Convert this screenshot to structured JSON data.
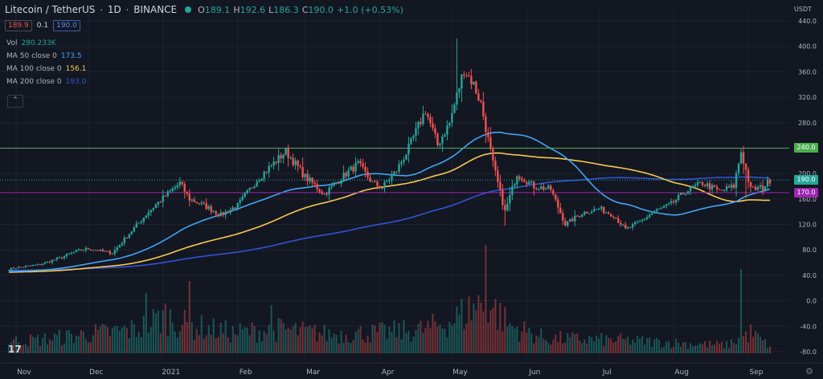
{
  "header": {
    "symbol": "Litecoin / TetherUS",
    "interval": "1D",
    "exchange": "BINANCE",
    "o_label": "O",
    "o_value": "189.1",
    "h_label": "H",
    "h_value": "192.6",
    "l_label": "L",
    "l_value": "186.3",
    "c_label": "C",
    "c_value": "190.0",
    "change": "+1.0 (+0.53%)"
  },
  "price_boxes": {
    "sell": "189.9",
    "spread": "0.1",
    "buy": "190.0"
  },
  "indicators": [
    {
      "label": "Vol",
      "value": "280.233K",
      "color": "#26a69a"
    },
    {
      "label": "MA 50 close 0",
      "value": "173.5",
      "color": "#42a5f5"
    },
    {
      "label": "MA 100 close 0",
      "value": "156.1",
      "color": "#f9c74f"
    },
    {
      "label": "MA 200 close 0",
      "value": "193.0",
      "color": "#2f55d4"
    }
  ],
  "collapse_icon": "chevron-up-icon",
  "colors": {
    "up": "#26a69a",
    "down": "#ef5350",
    "ma50": "#42a5f5",
    "ma100": "#f9c74f",
    "ma200": "#2f55d4",
    "hline_green": "#4caf50",
    "hline_purple": "#9c27b0",
    "last_price": "#26a69a"
  },
  "chart_data": {
    "type": "candlestick",
    "y_unit": "USDT",
    "y_ticks": [
      "440.0",
      "400.0",
      "360.0",
      "320.0",
      "280.0",
      "240.0",
      "200.0",
      "160.0",
      "120.0",
      "80.0",
      "40.0",
      "0.0",
      "-40.0",
      "-80.0"
    ],
    "y_tick_values": [
      440,
      400,
      360,
      320,
      280,
      240,
      200,
      160,
      120,
      80,
      40,
      0,
      -40,
      -80
    ],
    "ylim": [
      -95,
      470
    ],
    "x_labels": [
      "Nov",
      "Dec",
      "2021",
      "Feb",
      "Mar",
      "Apr",
      "May",
      "Jun",
      "Jul",
      "Aug",
      "Sep"
    ],
    "x_label_days": [
      0,
      30,
      61,
      92,
      120,
      151,
      181,
      212,
      242,
      273,
      304
    ],
    "x_range_days": [
      -5,
      317
    ],
    "horizontal_lines": [
      {
        "price": 240.0,
        "label": "240.0",
        "color": "#4caf50"
      },
      {
        "price": 170.0,
        "label": "170.0",
        "color": "#9c27b0"
      }
    ],
    "last_price": {
      "price": 190.0,
      "label": "190.0"
    },
    "close_anchors": [
      [
        -3,
        50
      ],
      [
        0,
        52
      ],
      [
        10,
        57
      ],
      [
        20,
        70
      ],
      [
        25,
        78
      ],
      [
        30,
        82
      ],
      [
        40,
        75
      ],
      [
        48,
        110
      ],
      [
        55,
        140
      ],
      [
        62,
        165
      ],
      [
        68,
        185
      ],
      [
        72,
        160
      ],
      [
        78,
        150
      ],
      [
        85,
        135
      ],
      [
        92,
        150
      ],
      [
        100,
        190
      ],
      [
        108,
        220
      ],
      [
        112,
        235
      ],
      [
        120,
        195
      ],
      [
        128,
        168
      ],
      [
        137,
        200
      ],
      [
        142,
        215
      ],
      [
        148,
        185
      ],
      [
        152,
        178
      ],
      [
        158,
        205
      ],
      [
        163,
        240
      ],
      [
        170,
        300
      ],
      [
        175,
        245
      ],
      [
        180,
        280
      ],
      [
        186,
        365
      ],
      [
        190,
        340
      ],
      [
        193,
        310
      ],
      [
        198,
        215
      ],
      [
        203,
        140
      ],
      [
        208,
        200
      ],
      [
        215,
        180
      ],
      [
        222,
        175
      ],
      [
        228,
        120
      ],
      [
        235,
        138
      ],
      [
        242,
        145
      ],
      [
        248,
        135
      ],
      [
        253,
        112
      ],
      [
        258,
        122
      ],
      [
        265,
        140
      ],
      [
        272,
        152
      ],
      [
        278,
        172
      ],
      [
        285,
        185
      ],
      [
        292,
        172
      ],
      [
        298,
        180
      ],
      [
        301,
        235
      ],
      [
        305,
        175
      ],
      [
        310,
        178
      ],
      [
        313,
        190
      ]
    ],
    "vol_anchors": [
      [
        -3,
        0.18
      ],
      [
        10,
        0.2
      ],
      [
        30,
        0.28
      ],
      [
        50,
        0.35
      ],
      [
        62,
        0.55
      ],
      [
        70,
        0.42
      ],
      [
        90,
        0.3
      ],
      [
        110,
        0.35
      ],
      [
        130,
        0.28
      ],
      [
        150,
        0.3
      ],
      [
        170,
        0.35
      ],
      [
        181,
        0.48
      ],
      [
        195,
        0.78
      ],
      [
        205,
        0.4
      ],
      [
        220,
        0.22
      ],
      [
        240,
        0.2
      ],
      [
        260,
        0.18
      ],
      [
        280,
        0.14
      ],
      [
        295,
        0.12
      ],
      [
        305,
        0.3
      ],
      [
        313,
        0.1
      ]
    ],
    "vol_spikes": [
      [
        54,
        0.75
      ],
      [
        72,
        0.9
      ],
      [
        106,
        0.6
      ],
      [
        195,
        1.35
      ],
      [
        301,
        1.05
      ]
    ]
  }
}
